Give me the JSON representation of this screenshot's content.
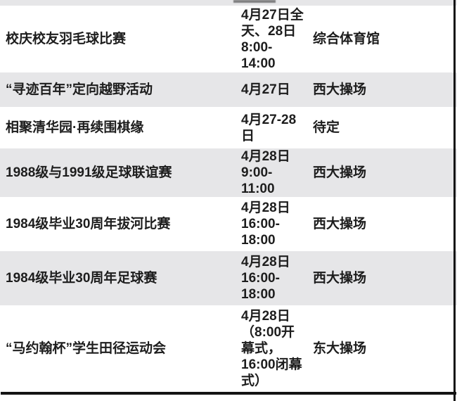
{
  "table": {
    "columns": [
      "event",
      "time",
      "venue"
    ],
    "rows": [
      {
        "event": "校庆校友羽毛球比赛",
        "time": "4月27日全\n天、28日\n8:00-\n14:00",
        "venue": "综合体育馆"
      },
      {
        "event": "“寻迹百年”定向越野活动",
        "time": "4月27日",
        "venue": "西大操场"
      },
      {
        "event": "相聚清华园·再续围棋缘",
        "time": "4月27-28\n日",
        "venue": "待定"
      },
      {
        "event": "1988级与1991级足球联谊赛",
        "time": "4月28日\n9:00-\n11:00",
        "venue": "西大操场"
      },
      {
        "event": "1984级毕业30周年拔河比赛",
        "time": "4月28日\n16:00-\n18:00",
        "venue": "西大操场"
      },
      {
        "event": "1984级毕业30周年足球赛",
        "time": "4月28日\n16:00-\n18:00",
        "venue": "西大操场"
      },
      {
        "event": "“马约翰杯”学生田径运动会",
        "time": "4月28日\n（8:00开\n幕式，\n16:00闭幕\n式）",
        "venue": "东大操场"
      }
    ],
    "colors": {
      "row_alt_bg": "#e6e6e8",
      "text": "#1d1d1d",
      "rule": "#141414"
    }
  }
}
